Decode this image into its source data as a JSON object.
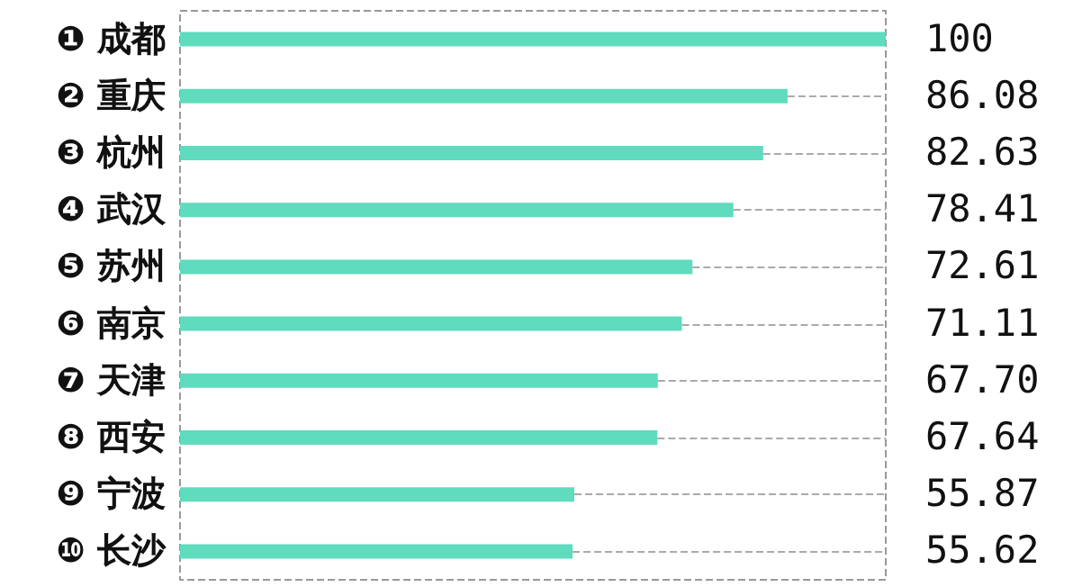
{
  "chart_data": {
    "type": "bar",
    "orientation": "horizontal",
    "categories": [
      "❶ 成都",
      "❷ 重庆",
      "❸ 杭州",
      "❹ 武汉",
      "❺ 苏州",
      "❻ 南京",
      "❼ 天津",
      "❽ 西安",
      "❾ 宁波",
      "❿ 长沙"
    ],
    "values": [
      100,
      86.08,
      82.63,
      78.41,
      72.61,
      71.11,
      67.7,
      67.64,
      55.87,
      55.62
    ],
    "value_labels": [
      "100",
      "86.08",
      "82.63",
      "78.41",
      "72.61",
      "71.11",
      "67.70",
      "67.64",
      "55.87",
      "55.62"
    ],
    "color": "#5fdbbd",
    "xlim": [
      0,
      100
    ],
    "tick_labels": "y"
  }
}
